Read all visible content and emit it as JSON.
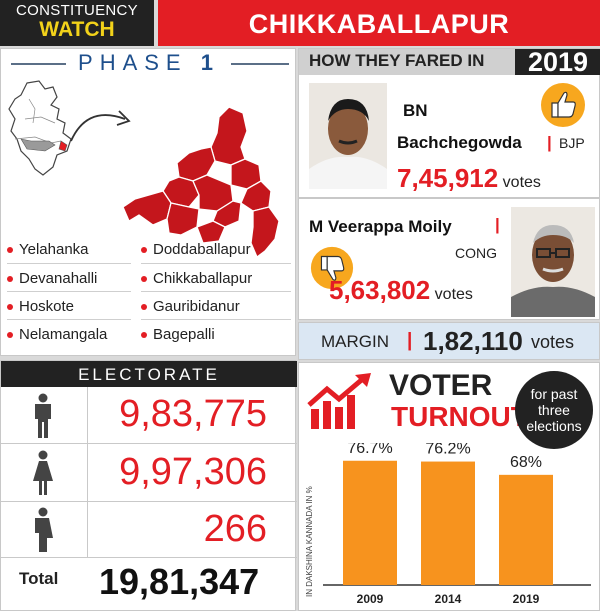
{
  "header": {
    "left_line1": "CONSTITUENCY",
    "left_line2": "WATCH",
    "title": "CHIKKABALLAPUR"
  },
  "phase": {
    "label": "PHASE",
    "number": "1",
    "taluks_left": [
      "Yelahanka",
      "Devanahalli",
      "Hoskote",
      "Nelamangala"
    ],
    "taluks_right": [
      "Doddaballapur",
      "Chikkaballapur",
      "Gauribidanur",
      "Bagepalli"
    ]
  },
  "fared": {
    "title": "HOW THEY FARED IN",
    "year": "2019",
    "winner": {
      "name_line1": "BN",
      "name_line2": "Bachchegowda",
      "party": "BJP",
      "votes": "7,45,912",
      "votes_label": "votes"
    },
    "runner": {
      "name": "M Veerappa Moily",
      "party": "CONG",
      "votes": "5,63,802",
      "votes_label": "votes"
    }
  },
  "margin": {
    "label": "MARGIN",
    "value": "1,82,110",
    "unit": "votes"
  },
  "electorate": {
    "title": "ELECTORATE",
    "male": "9,83,775",
    "female": "9,97,306",
    "other": "266",
    "total_label": "Total",
    "total": "19,81,347"
  },
  "turnout": {
    "title_line1": "VOTER",
    "title_line2": "TURNOUT",
    "badge": "for past three elections",
    "axis_note": "IN DAKSHINA KANNADA IN %",
    "chart_data": {
      "type": "bar",
      "categories": [
        "2009",
        "2014",
        "2019"
      ],
      "values": [
        76.7,
        76.2,
        68
      ],
      "value_labels": [
        "76.7%",
        "76.2%",
        "68%"
      ],
      "ylim": [
        0,
        100
      ]
    }
  },
  "colors": {
    "red": "#e31e24",
    "orange": "#f7931e",
    "dark": "#222222",
    "blue": "#1e4f8c"
  }
}
